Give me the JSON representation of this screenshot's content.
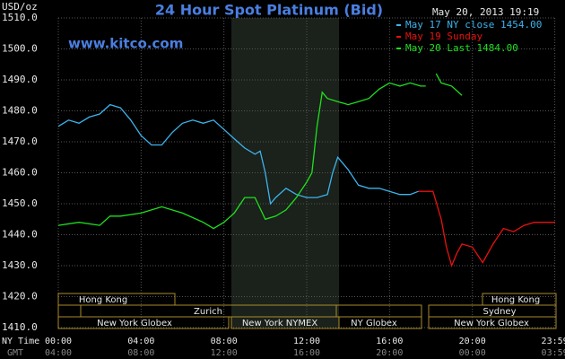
{
  "chart_data": {
    "type": "line",
    "title": "24 Hour Spot Platinum (Bid)",
    "y_label": "USD/oz",
    "timestamp": "May 20, 2013 19:19",
    "source": "www.kitco.com",
    "x_label": "NY Time",
    "x2_label": "GMT",
    "xlim": [
      0,
      24
    ],
    "xticks": [
      {
        "value": 0,
        "label": "00:00"
      },
      {
        "value": 4,
        "label": "04:00"
      },
      {
        "value": 8,
        "label": "08:00"
      },
      {
        "value": 12,
        "label": "12:00"
      },
      {
        "value": 16,
        "label": "16:00"
      },
      {
        "value": 20,
        "label": "20:00"
      },
      {
        "value": 23.983,
        "label": "23:59"
      }
    ],
    "x2ticks": [
      {
        "value": 0,
        "label": "04:00"
      },
      {
        "value": 4,
        "label": "08:00"
      },
      {
        "value": 8,
        "label": "12:00"
      },
      {
        "value": 12,
        "label": "16:00"
      },
      {
        "value": 16,
        "label": "20:00"
      },
      {
        "value": 20,
        "label": "00:00"
      },
      {
        "value": 23.983,
        "label": "03:59"
      }
    ],
    "ylim": [
      1410,
      1510
    ],
    "yticks": [
      {
        "value": 1410,
        "label": "1410.0"
      },
      {
        "value": 1420,
        "label": "1420.0"
      },
      {
        "value": 1430,
        "label": "1430.0"
      },
      {
        "value": 1440,
        "label": "1440.0"
      },
      {
        "value": 1450,
        "label": "1450.0"
      },
      {
        "value": 1460,
        "label": "1460.0"
      },
      {
        "value": 1470,
        "label": "1470.0"
      },
      {
        "value": 1480,
        "label": "1480.0"
      },
      {
        "value": 1490,
        "label": "1490.0"
      },
      {
        "value": 1500,
        "label": "1500.0"
      },
      {
        "value": 1510,
        "label": "1510.0"
      }
    ],
    "grid": true,
    "series": [
      {
        "name": "May 17 NY close 1454.00",
        "color": "#3cb4ec",
        "x": [
          0,
          0.5,
          1,
          1.5,
          2,
          2.5,
          3,
          3.5,
          4,
          4.5,
          5,
          5.5,
          6,
          6.5,
          7,
          7.5,
          8,
          8.5,
          9,
          9.5,
          9.75,
          10,
          10.25,
          10.5,
          11,
          11.5,
          12,
          12.5,
          13,
          13.25,
          13.5,
          14,
          14.5,
          15,
          15.5,
          16,
          16.5,
          17,
          17.4
        ],
        "values": [
          1475,
          1477,
          1476,
          1478,
          1479,
          1482,
          1481,
          1477,
          1472,
          1469,
          1469,
          1473,
          1476,
          1477,
          1476,
          1477,
          1474,
          1471,
          1468,
          1466,
          1467,
          1460,
          1450,
          1452,
          1455,
          1453,
          1452,
          1452,
          1453,
          1460,
          1465,
          1461,
          1456,
          1455,
          1455,
          1454,
          1453,
          1453,
          1454
        ]
      },
      {
        "name": "May 19 Sunday",
        "color": "#e81010",
        "x": [
          17.4,
          18.1,
          18.5,
          18.75,
          19,
          19.25,
          19.5,
          20,
          20.5,
          21,
          21.5,
          22,
          22.5,
          23,
          23.5,
          24
        ],
        "values": [
          1454,
          1454,
          1445,
          1436,
          1430,
          1434,
          1437,
          1436,
          1431,
          1437,
          1442,
          1441,
          1443,
          1444,
          1444,
          1444
        ]
      },
      {
        "name": "May 20 Last 1484.00",
        "color": "#1ee01e",
        "x": [
          0,
          1,
          2,
          2.5,
          3,
          4,
          5,
          6,
          7,
          7.5,
          8,
          8.5,
          9,
          9.5,
          10,
          10.5,
          11,
          11.5,
          12,
          12.25,
          12.5,
          12.75,
          13,
          13.5,
          14,
          14.5,
          15,
          15.5,
          16,
          16.5,
          17,
          17.5,
          17.75,
          18,
          18.25,
          18.5,
          19,
          19.5
        ],
        "values": [
          1443,
          1444,
          1443,
          1446,
          1446,
          1447,
          1449,
          1447,
          1444,
          1442,
          1444,
          1447,
          1452,
          1452,
          1445,
          1446,
          1448,
          1452,
          1457,
          1460,
          1475,
          1486,
          1484,
          1483,
          1482,
          1483,
          1484,
          1487,
          1489,
          1488,
          1489,
          1488,
          1488,
          null,
          1492,
          1489,
          1488,
          1485
        ]
      }
    ]
  },
  "sessions": [
    "Hong Kong",
    "Hong Kong",
    "Zurich",
    "Sydney",
    "New York Globex",
    "New York NYMEX",
    "NY Globex",
    "New York Globex"
  ]
}
